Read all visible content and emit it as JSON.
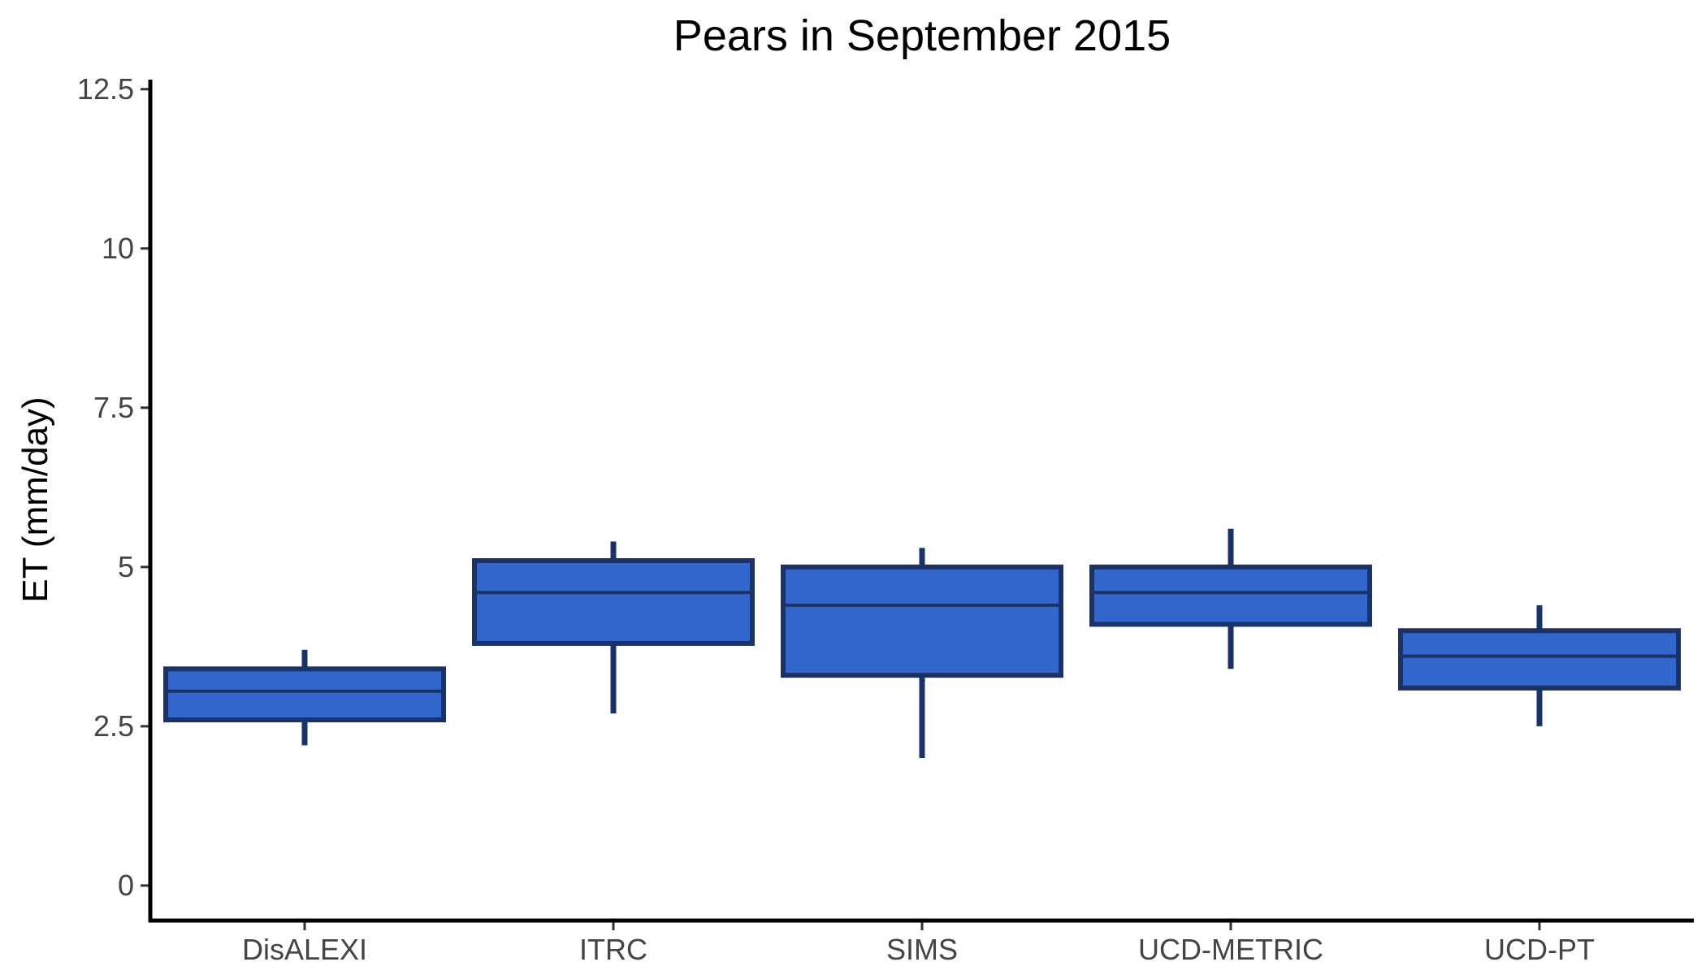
{
  "chart_data": {
    "type": "boxplot",
    "title": "Pears in September 2015",
    "xlabel": "",
    "ylabel": "ET (mm/day)",
    "ylim": [
      -0.55,
      12.65
    ],
    "yticks": [
      0,
      2.5,
      5,
      7.5,
      10,
      12.5
    ],
    "ytick_labels": [
      "0",
      "2.5",
      "5",
      "7.5",
      "10",
      "12.5"
    ],
    "grid": false,
    "categories": [
      "DisALEXI",
      "ITRC",
      "SIMS",
      "UCD-METRIC",
      "UCD-PT"
    ],
    "boxes": [
      {
        "category": "DisALEXI",
        "min": 2.2,
        "q1": 2.6,
        "median": 3.05,
        "q3": 3.4,
        "max": 3.7
      },
      {
        "category": "ITRC",
        "min": 2.7,
        "q1": 3.8,
        "median": 4.6,
        "q3": 5.1,
        "max": 5.4
      },
      {
        "category": "SIMS",
        "min": 2.0,
        "q1": 3.3,
        "median": 4.4,
        "q3": 5.0,
        "max": 5.3
      },
      {
        "category": "UCD-METRIC",
        "min": 3.4,
        "q1": 4.1,
        "median": 4.6,
        "q3": 5.0,
        "max": 5.6
      },
      {
        "category": "UCD-PT",
        "min": 2.5,
        "q1": 3.1,
        "median": 3.6,
        "q3": 4.0,
        "max": 4.4
      }
    ],
    "colors": {
      "box_fill": "#3366cc",
      "box_outline": "#1b3266",
      "axis": "#000000"
    }
  }
}
